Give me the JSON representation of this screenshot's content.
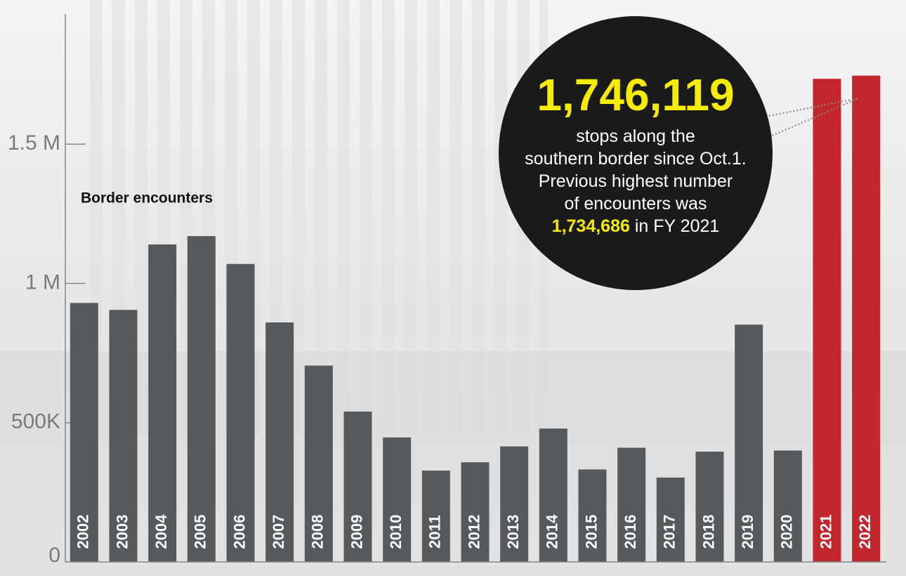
{
  "chart_data": {
    "type": "bar",
    "label": "Border encounters",
    "categories": [
      "2002",
      "2003",
      "2004",
      "2005",
      "2006",
      "2007",
      "2008",
      "2009",
      "2010",
      "2011",
      "2012",
      "2013",
      "2014",
      "2015",
      "2016",
      "2017",
      "2018",
      "2019",
      "2020",
      "2021",
      "2022"
    ],
    "values": [
      930000,
      905000,
      1140000,
      1170000,
      1070000,
      860000,
      705000,
      540000,
      447000,
      328000,
      358000,
      415000,
      479000,
      332000,
      410000,
      303000,
      396000,
      852000,
      400000,
      1734686,
      1746119
    ],
    "colors": [
      "#58595b",
      "#58595b",
      "#58595b",
      "#58595b",
      "#58595b",
      "#58595b",
      "#58595b",
      "#58595b",
      "#58595b",
      "#58595b",
      "#58595b",
      "#58595b",
      "#58595b",
      "#58595b",
      "#58595b",
      "#58595b",
      "#58595b",
      "#58595b",
      "#58595b",
      "#c1272d",
      "#c1272d"
    ],
    "ylim": [
      0,
      2000000
    ],
    "yticks": [
      0,
      {
        "value": 500000,
        "label": "500K"
      },
      {
        "value": 1000000,
        "label": "1 M"
      },
      {
        "value": 1500000,
        "label": "1.5 M"
      }
    ],
    "annotation": {
      "headline": "1,746,119",
      "lines": [
        "stops along the",
        "southern border since Oct.1.",
        "Previous highest number",
        "of encounters was"
      ],
      "highlight": "1,734,686",
      "suffix": "in FY 2021"
    }
  }
}
